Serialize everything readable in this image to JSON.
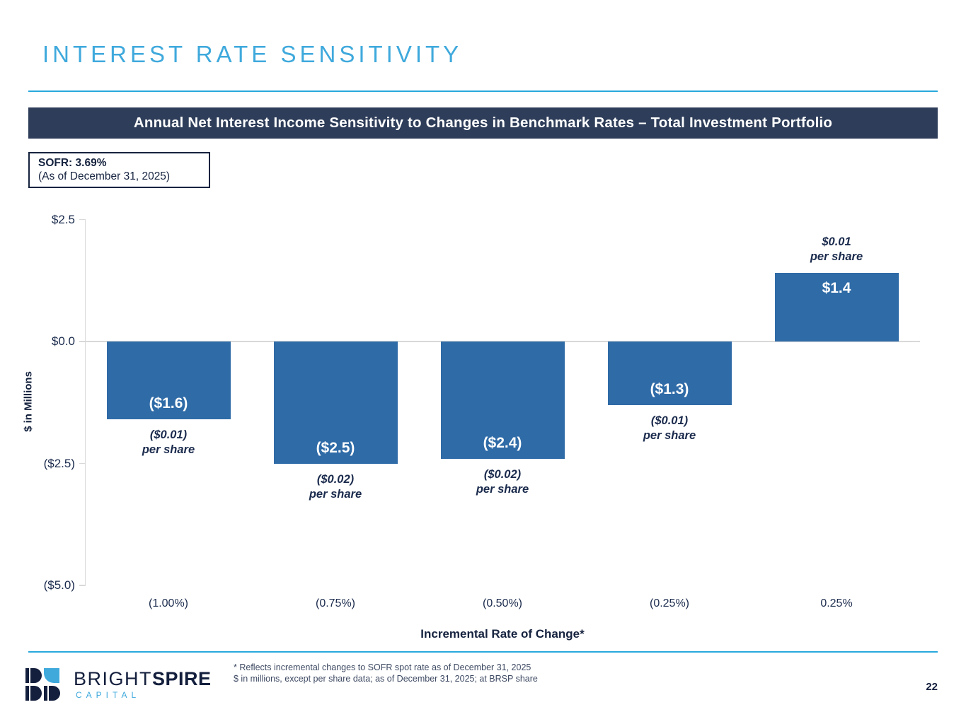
{
  "slide": {
    "title": "INTEREST RATE SENSITIVITY",
    "banner": "Annual Net Interest Income Sensitivity to Changes in Benchmark Rates – Total Investment Portfolio",
    "sofr_box": {
      "line1": "SOFR: 3.69%",
      "line2": "(As of December 31, 2025)"
    },
    "page_number": "22"
  },
  "chart_data": {
    "type": "bar",
    "title": "Annual Net Interest Income Sensitivity to Changes in Benchmark Rates – Total Investment Portfolio",
    "categories": [
      "(1.00%)",
      "(0.75%)",
      "(0.50%)",
      "(0.25%)",
      "0.25%"
    ],
    "values": [
      -1.6,
      -2.5,
      -2.4,
      -1.3,
      1.4
    ],
    "bar_labels": [
      "($1.6)",
      "($2.5)",
      "($2.4)",
      "($1.3)",
      "$1.4"
    ],
    "per_share_labels": [
      [
        "($0.01)",
        "per share"
      ],
      [
        "($0.02)",
        "per share"
      ],
      [
        "($0.02)",
        "per share"
      ],
      [
        "($0.01)",
        "per share"
      ],
      [
        "$0.01",
        "per share"
      ]
    ],
    "xlabel": "Incremental Rate of Change*",
    "ylabel": "$ in Millions",
    "y_ticks": [
      {
        "value": 2.5,
        "label": "$2.5"
      },
      {
        "value": 0.0,
        "label": "$0.0"
      },
      {
        "value": -2.5,
        "label": "($2.5)"
      },
      {
        "value": -5.0,
        "label": "($5.0)"
      }
    ],
    "ylim": [
      -5.0,
      2.5
    ],
    "grid": "zero-line-only",
    "legend": "none",
    "bar_color": "#2F6BA7",
    "units": "$ in millions"
  },
  "footer": {
    "logo_text_light": "BRIGHT",
    "logo_text_bold": "SPIRE",
    "logo_subtext": "CAPITAL",
    "footnote1": "* Reflects incremental changes to SOFR spot rate as of December 31, 2025",
    "footnote2": "$ in millions, except per share data; as of December 31, 2025; at BRSP share"
  }
}
